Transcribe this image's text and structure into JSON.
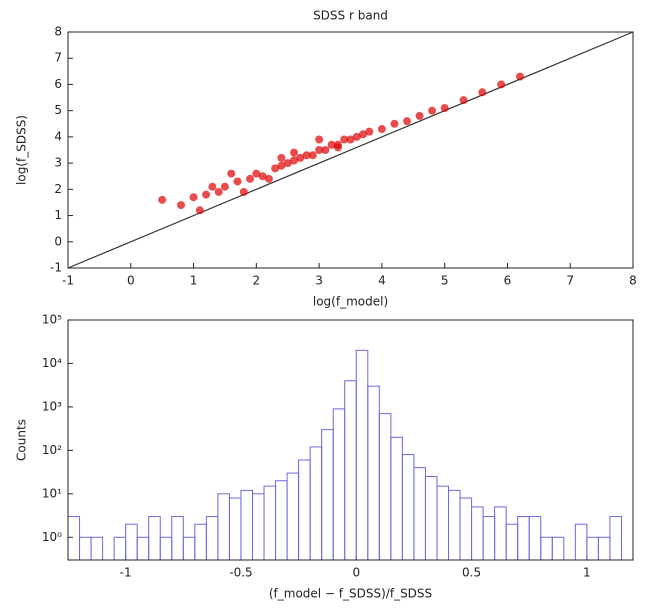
{
  "chart_data": [
    {
      "type": "scatter",
      "title": "SDSS r band",
      "xlabel": "log(f_model)",
      "ylabel": "log(f_SDSS)",
      "color": "#e00000",
      "x": [
        0.8,
        1.0,
        1.2,
        1.4,
        1.5,
        1.7,
        1.9,
        2.0,
        2.1,
        2.3,
        2.4,
        2.5,
        2.6,
        2.7,
        2.8,
        2.9,
        3.0,
        3.1,
        3.2,
        3.3,
        3.4,
        3.5,
        3.6,
        3.7,
        3.8,
        4.0,
        4.2,
        4.4,
        4.6,
        4.8,
        5.0,
        5.3,
        5.6,
        5.9,
        6.2,
        1.1,
        1.6,
        2.2,
        2.6,
        3.0,
        0.5,
        1.3,
        1.8,
        2.4,
        3.3
      ],
      "y": [
        1.4,
        1.7,
        1.8,
        1.9,
        2.1,
        2.3,
        2.4,
        2.6,
        2.5,
        2.8,
        2.9,
        3.0,
        3.1,
        3.2,
        3.3,
        3.3,
        3.5,
        3.5,
        3.7,
        3.7,
        3.9,
        3.9,
        4.0,
        4.1,
        4.2,
        4.3,
        4.5,
        4.6,
        4.8,
        5.0,
        5.1,
        5.4,
        5.7,
        6.0,
        6.3,
        1.2,
        2.6,
        2.4,
        3.4,
        3.9,
        1.6,
        2.1,
        1.9,
        3.2,
        3.6
      ],
      "xlim": [
        -1,
        8
      ],
      "ylim": [
        -1,
        8
      ],
      "xticks": [
        -1,
        0,
        1,
        2,
        3,
        4,
        5,
        6,
        7,
        8
      ],
      "yticks": [
        -1,
        0,
        1,
        2,
        3,
        4,
        5,
        6,
        7,
        8
      ]
    },
    {
      "type": "histogram",
      "xlabel": "(f_model − f_SDSS)/f_SDSS",
      "ylabel": "Counts",
      "color": "#6a6ae0",
      "log_y": true,
      "bins": [
        -1.25,
        -1.2,
        -1.15,
        -1.1,
        -1.05,
        -1.0,
        -0.95,
        -0.9,
        -0.85,
        -0.8,
        -0.75,
        -0.7,
        -0.65,
        -0.6,
        -0.55,
        -0.5,
        -0.45,
        -0.4,
        -0.35,
        -0.3,
        -0.25,
        -0.2,
        -0.15,
        -0.1,
        -0.05,
        0.0,
        0.05,
        0.1,
        0.15,
        0.2,
        0.25,
        0.3,
        0.35,
        0.4,
        0.45,
        0.5,
        0.55,
        0.6,
        0.65,
        0.7,
        0.75,
        0.8,
        0.85,
        0.9,
        0.95,
        1.0,
        1.05,
        1.1,
        1.15
      ],
      "values": [
        3,
        1,
        1,
        0,
        1,
        2,
        1,
        3,
        1,
        3,
        1,
        2,
        3,
        10,
        8,
        12,
        10,
        15,
        20,
        30,
        60,
        120,
        300,
        900,
        4000,
        20000,
        3000,
        700,
        200,
        80,
        40,
        25,
        15,
        12,
        8,
        5,
        3,
        5,
        2,
        3,
        3,
        1,
        1,
        0,
        2,
        1,
        1,
        3
      ],
      "xlim": [
        -1.25,
        1.2
      ],
      "ylim": [
        0.3,
        100000
      ],
      "xticks": [
        -1,
        -0.5,
        0,
        0.5,
        1
      ],
      "yticks": [
        {
          "value": 1,
          "label": "10⁰"
        },
        {
          "value": 10,
          "label": "10¹"
        },
        {
          "value": 100,
          "label": "10²"
        },
        {
          "value": 1000,
          "label": "10³"
        },
        {
          "value": 10000,
          "label": "10⁴"
        },
        {
          "value": 100000,
          "label": "10⁵"
        }
      ]
    }
  ]
}
